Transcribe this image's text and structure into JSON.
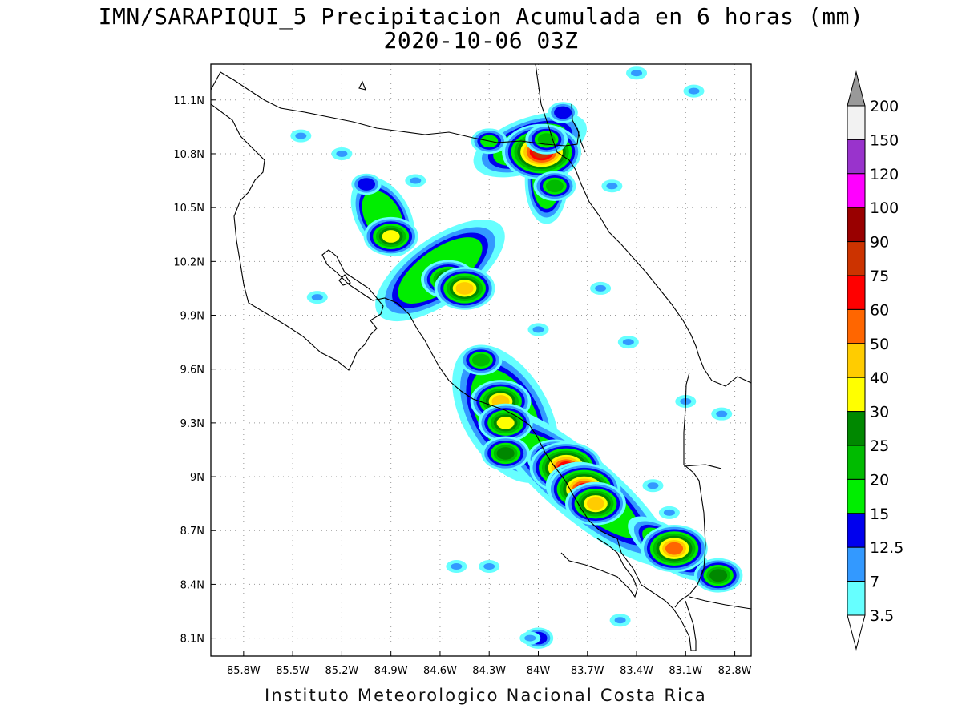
{
  "title": {
    "line1": "IMN/SARAPIQUI_5 Precipitacion Acumulada en 6 horas (mm)",
    "line2": "2020-10-06 03Z"
  },
  "footer": "Instituto Meteorologico Nacional Costa Rica",
  "map": {
    "lon_range": [
      -86.0,
      -82.7
    ],
    "lat_range": [
      8.0,
      11.3
    ],
    "lon_ticks": [
      {
        "value": -85.8,
        "label": "85.8W"
      },
      {
        "value": -85.5,
        "label": "85.5W"
      },
      {
        "value": -85.2,
        "label": "85.2W"
      },
      {
        "value": -84.9,
        "label": "84.9W"
      },
      {
        "value": -84.6,
        "label": "84.6W"
      },
      {
        "value": -84.3,
        "label": "84.3W"
      },
      {
        "value": -84.0,
        "label": "84W"
      },
      {
        "value": -83.7,
        "label": "83.7W"
      },
      {
        "value": -83.4,
        "label": "83.4W"
      },
      {
        "value": -83.1,
        "label": "83.1W"
      },
      {
        "value": -82.8,
        "label": "82.8W"
      }
    ],
    "lat_ticks": [
      {
        "value": 8.1,
        "label": "8.1N"
      },
      {
        "value": 8.4,
        "label": "8.4N"
      },
      {
        "value": 8.7,
        "label": "8.7N"
      },
      {
        "value": 9.0,
        "label": "9N"
      },
      {
        "value": 9.3,
        "label": "9.3N"
      },
      {
        "value": 9.6,
        "label": "9.6N"
      },
      {
        "value": 9.9,
        "label": "9.9N"
      },
      {
        "value": 10.2,
        "label": "10.2N"
      },
      {
        "value": 10.5,
        "label": "10.5N"
      },
      {
        "value": 10.8,
        "label": "10.8N"
      },
      {
        "value": 11.1,
        "label": "11.1N"
      }
    ],
    "grid": "dotted",
    "precip_cells": [
      {
        "lon": -84.05,
        "lat": 10.82,
        "mm": 30
      },
      {
        "lon": -84.0,
        "lat": 10.8,
        "mm": 40
      },
      {
        "lon": -83.98,
        "lat": 10.81,
        "mm": 75
      },
      {
        "lon": -83.95,
        "lat": 10.88,
        "mm": 20
      },
      {
        "lon": -84.3,
        "lat": 10.87,
        "mm": 15
      },
      {
        "lon": -83.85,
        "lat": 11.03,
        "mm": 12.5
      },
      {
        "lon": -83.9,
        "lat": 10.62,
        "mm": 20
      },
      {
        "lon": -84.9,
        "lat": 10.34,
        "mm": 30
      },
      {
        "lon": -84.55,
        "lat": 10.1,
        "mm": 30
      },
      {
        "lon": -84.45,
        "lat": 10.05,
        "mm": 40
      },
      {
        "lon": -85.05,
        "lat": 10.63,
        "mm": 12.5
      },
      {
        "lon": -84.35,
        "lat": 9.65,
        "mm": 20
      },
      {
        "lon": -84.23,
        "lat": 9.42,
        "mm": 40
      },
      {
        "lon": -84.2,
        "lat": 9.3,
        "mm": 30
      },
      {
        "lon": -84.2,
        "lat": 9.13,
        "mm": 25
      },
      {
        "lon": -83.9,
        "lat": 9.1,
        "mm": 30
      },
      {
        "lon": -83.83,
        "lat": 9.05,
        "mm": 60
      },
      {
        "lon": -83.75,
        "lat": 8.95,
        "mm": 50
      },
      {
        "lon": -83.72,
        "lat": 8.93,
        "mm": 60
      },
      {
        "lon": -83.65,
        "lat": 8.85,
        "mm": 40
      },
      {
        "lon": -83.17,
        "lat": 8.6,
        "mm": 50
      },
      {
        "lon": -82.9,
        "lat": 8.45,
        "mm": 25
      },
      {
        "lon": -84.0,
        "lat": 8.1,
        "mm": 12.5
      }
    ]
  },
  "colorbar": {
    "levels": [
      "200",
      "150",
      "120",
      "100",
      "90",
      "75",
      "60",
      "50",
      "40",
      "30",
      "25",
      "20",
      "15",
      "12.5",
      "7",
      "3.5"
    ],
    "colors": [
      "#f2f2f2",
      "#9933cc",
      "#ff00ff",
      "#990000",
      "#cc3300",
      "#ff0000",
      "#ff6600",
      "#ffcc00",
      "#ffff00",
      "#008800",
      "#00bb00",
      "#00ee00",
      "#0000ee",
      "#3399ff",
      "#66ffff"
    ],
    "over_color": "#999999",
    "under_color": "#ffffff"
  }
}
